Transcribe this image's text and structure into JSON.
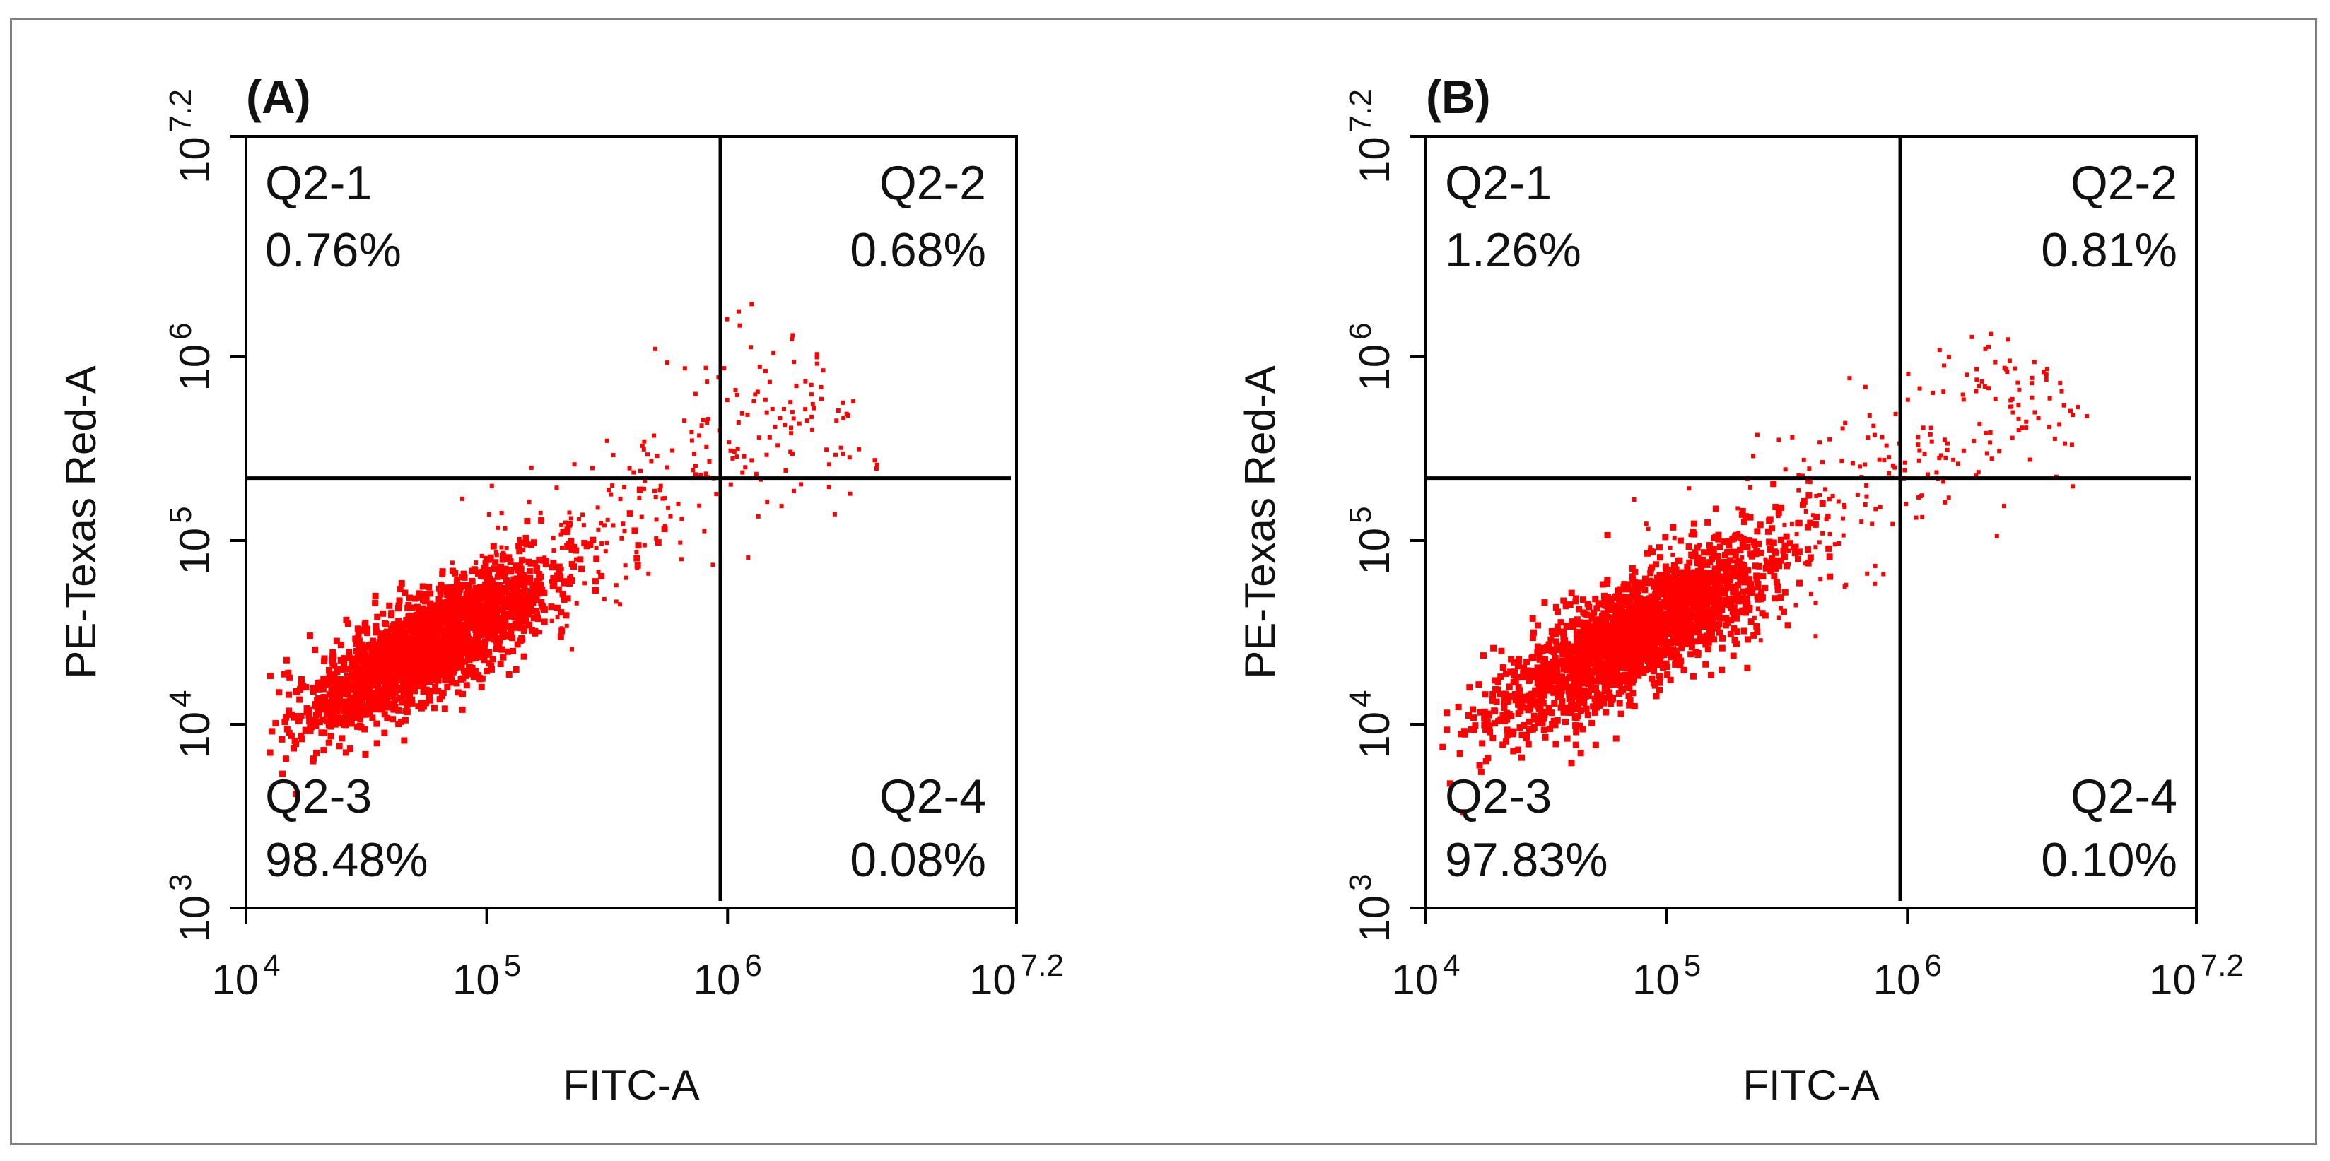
{
  "chart_data": [
    {
      "type": "scatter",
      "panel_label": "(A)",
      "xlabel": "FITC-A",
      "ylabel": "PE-Texas Red-A",
      "x_scale": "log",
      "y_scale": "log",
      "xlim_log10": [
        4,
        7.2
      ],
      "ylim_log10": [
        3,
        7.2
      ],
      "x_ticks": [
        {
          "base": "10",
          "exp": "4",
          "log": 4
        },
        {
          "base": "10",
          "exp": "5",
          "log": 5
        },
        {
          "base": "10",
          "exp": "6",
          "log": 6
        },
        {
          "base": "10",
          "exp": "7.2",
          "log": 7.2
        }
      ],
      "y_ticks": [
        {
          "base": "10",
          "exp": "3",
          "log": 3
        },
        {
          "base": "10",
          "exp": "4",
          "log": 4
        },
        {
          "base": "10",
          "exp": "5",
          "log": 5
        },
        {
          "base": "10",
          "exp": "6",
          "log": 6
        },
        {
          "base": "10",
          "exp": "7.2",
          "log": 7.2
        }
      ],
      "gate_x_log10": 5.97,
      "gate_y_log10": 5.34,
      "quadrants": [
        {
          "name": "Q2-1",
          "percent": "0.76%"
        },
        {
          "name": "Q2-2",
          "percent": "0.68%"
        },
        {
          "name": "Q2-3",
          "percent": "98.48%"
        },
        {
          "name": "Q2-4",
          "percent": "0.08%"
        }
      ],
      "point_color": "#ff0000",
      "population": {
        "center_log10": [
          4.75,
          4.45
        ],
        "slope": 0.85,
        "spread_major": 0.32,
        "spread_minor": 0.11
      }
    },
    {
      "type": "scatter",
      "panel_label": "(B)",
      "xlabel": "FITC-A",
      "ylabel": "PE-Texas Red-A",
      "x_scale": "log",
      "y_scale": "log",
      "xlim_log10": [
        4,
        7.2
      ],
      "ylim_log10": [
        3,
        7.2
      ],
      "x_ticks": [
        {
          "base": "10",
          "exp": "4",
          "log": 4
        },
        {
          "base": "10",
          "exp": "5",
          "log": 5
        },
        {
          "base": "10",
          "exp": "6",
          "log": 6
        },
        {
          "base": "10",
          "exp": "7.2",
          "log": 7.2
        }
      ],
      "y_ticks": [
        {
          "base": "10",
          "exp": "3",
          "log": 3
        },
        {
          "base": "10",
          "exp": "4",
          "log": 4
        },
        {
          "base": "10",
          "exp": "5",
          "log": 5
        },
        {
          "base": "10",
          "exp": "6",
          "log": 6
        },
        {
          "base": "10",
          "exp": "7.2",
          "log": 7.2
        }
      ],
      "gate_x_log10": 5.97,
      "gate_y_log10": 5.34,
      "quadrants": [
        {
          "name": "Q2-1",
          "percent": "1.26%"
        },
        {
          "name": "Q2-2",
          "percent": "0.81%"
        },
        {
          "name": "Q2-3",
          "percent": "97.83%"
        },
        {
          "name": "Q2-4",
          "percent": "0.10%"
        }
      ],
      "point_color": "#ff0000",
      "population": {
        "center_log10": [
          4.85,
          4.5
        ],
        "slope": 0.85,
        "spread_major": 0.36,
        "spread_minor": 0.12
      }
    }
  ]
}
